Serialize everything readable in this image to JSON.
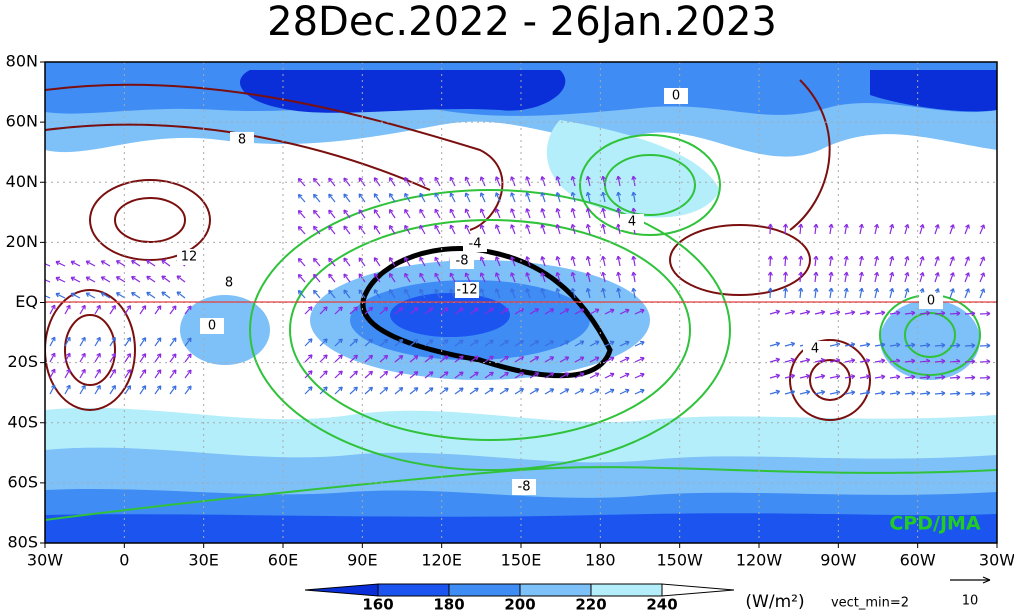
{
  "title": "28Dec.2022 - 26Jan.2023",
  "lat_labels": [
    "80N",
    "60N",
    "40N",
    "20N",
    "EQ",
    "20S",
    "40S",
    "60S",
    "80S"
  ],
  "lon_labels": [
    "30W",
    "0",
    "30E",
    "60E",
    "90E",
    "120E",
    "150E",
    "180",
    "150W",
    "120W",
    "90W",
    "60W",
    "30W"
  ],
  "contour_labels": [
    "0",
    "8",
    "12",
    "8",
    "0",
    "-4",
    "-8",
    "-12",
    "4",
    "0",
    "4",
    "-8"
  ],
  "colorbar": {
    "ticks": [
      "160",
      "180",
      "200",
      "220",
      "240"
    ],
    "unit": "(W/m²)"
  },
  "vector_note": "vect_min=2",
  "vector_scale": "10",
  "credit": "CPD/JMA"
}
